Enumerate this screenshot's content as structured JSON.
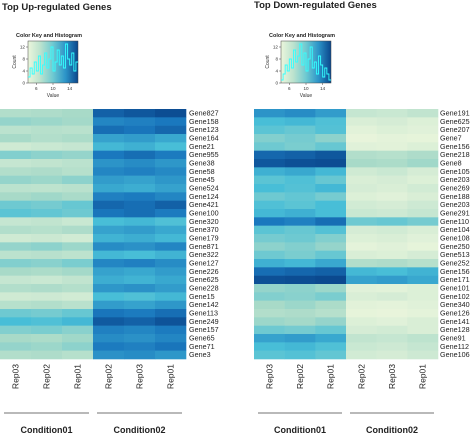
{
  "chart_data": [
    {
      "type": "heatmap",
      "title": "Top Up-regulated Genes",
      "key_title": "Color Key and Histogram",
      "key_xlabel": "Value",
      "key_ylabel": "Count",
      "key_xticks": [
        "6",
        "10",
        "14"
      ],
      "key_yticks": [
        "0",
        "4",
        "8",
        "12"
      ],
      "key_xlim": [
        4,
        16
      ],
      "key_ylim": [
        0,
        14
      ],
      "key_hist": [
        2,
        5,
        3,
        7,
        4,
        9,
        3,
        6,
        10,
        5,
        8,
        12,
        4,
        7,
        11,
        6,
        9,
        5,
        13,
        8,
        6,
        10,
        4,
        7
      ],
      "rows": [
        "Gene827",
        "Gene158",
        "Gene123",
        "Gene164",
        "Gene21",
        "Gene955",
        "Gene38",
        "Gene58",
        "Gene45",
        "Gene524",
        "Gene124",
        "Gene421",
        "Gene100",
        "Gene320",
        "Gene370",
        "Gene179",
        "Gene871",
        "Gene322",
        "Gene127",
        "Gene226",
        "Gene625",
        "Gene228",
        "Gene15",
        "Gene142",
        "Gene113",
        "Gene249",
        "Gene157",
        "Gene65",
        "Gene71",
        "Gene3"
      ],
      "columns": [
        "Rep03",
        "Rep02",
        "Rep01",
        "Rep02",
        "Rep03",
        "Rep01"
      ],
      "groups": [
        {
          "label": "Condition01",
          "span": 3
        },
        {
          "label": "Condition02",
          "span": 3
        }
      ],
      "values": [
        [
          0.3,
          0.32,
          0.35,
          0.92,
          0.95,
          0.98
        ],
        [
          0.4,
          0.38,
          0.36,
          0.8,
          0.82,
          0.85
        ],
        [
          0.25,
          0.28,
          0.26,
          0.88,
          0.86,
          0.9
        ],
        [
          0.35,
          0.3,
          0.33,
          0.7,
          0.72,
          0.68
        ],
        [
          0.15,
          0.18,
          0.2,
          0.62,
          0.65,
          0.6
        ],
        [
          0.45,
          0.42,
          0.4,
          0.85,
          0.88,
          0.84
        ],
        [
          0.2,
          0.22,
          0.25,
          0.75,
          0.78,
          0.74
        ],
        [
          0.3,
          0.32,
          0.28,
          0.8,
          0.82,
          0.79
        ],
        [
          0.4,
          0.38,
          0.42,
          0.72,
          0.7,
          0.74
        ],
        [
          0.25,
          0.24,
          0.26,
          0.68,
          0.66,
          0.7
        ],
        [
          0.35,
          0.37,
          0.34,
          0.82,
          0.84,
          0.8
        ],
        [
          0.5,
          0.48,
          0.52,
          0.9,
          0.88,
          0.92
        ],
        [
          0.55,
          0.53,
          0.5,
          0.86,
          0.88,
          0.84
        ],
        [
          0.2,
          0.22,
          0.18,
          0.6,
          0.62,
          0.58
        ],
        [
          0.3,
          0.28,
          0.32,
          0.7,
          0.72,
          0.68
        ],
        [
          0.15,
          0.17,
          0.14,
          0.64,
          0.66,
          0.62
        ],
        [
          0.4,
          0.42,
          0.38,
          0.78,
          0.76,
          0.8
        ],
        [
          0.25,
          0.27,
          0.24,
          0.62,
          0.6,
          0.64
        ],
        [
          0.45,
          0.43,
          0.47,
          0.8,
          0.82,
          0.78
        ],
        [
          0.35,
          0.33,
          0.36,
          0.7,
          0.68,
          0.72
        ],
        [
          0.2,
          0.18,
          0.22,
          0.66,
          0.64,
          0.68
        ],
        [
          0.3,
          0.32,
          0.29,
          0.74,
          0.76,
          0.72
        ],
        [
          0.15,
          0.16,
          0.14,
          0.6,
          0.58,
          0.62
        ],
        [
          0.28,
          0.3,
          0.26,
          0.72,
          0.7,
          0.74
        ],
        [
          0.5,
          0.48,
          0.52,
          0.86,
          0.84,
          0.88
        ],
        [
          0.6,
          0.58,
          0.62,
          0.94,
          0.92,
          0.96
        ],
        [
          0.45,
          0.47,
          0.43,
          0.82,
          0.8,
          0.84
        ],
        [
          0.35,
          0.33,
          0.37,
          0.78,
          0.76,
          0.8
        ],
        [
          0.4,
          0.38,
          0.42,
          0.84,
          0.82,
          0.86
        ],
        [
          0.3,
          0.32,
          0.28,
          0.76,
          0.78,
          0.74
        ]
      ]
    },
    {
      "type": "heatmap",
      "title": "Top Down-regulated Genes",
      "key_title": "Color Key and Histogram",
      "key_xlabel": "Value",
      "key_ylabel": "Count",
      "key_xticks": [
        "6",
        "10",
        "14"
      ],
      "key_yticks": [
        "0",
        "4",
        "8",
        "12"
      ],
      "key_xlim": [
        4,
        16
      ],
      "key_ylim": [
        0,
        14
      ],
      "key_hist": [
        1,
        3,
        6,
        4,
        8,
        5,
        11,
        7,
        9,
        13,
        6,
        10,
        4,
        8,
        12,
        5,
        7,
        3,
        9,
        6,
        2,
        5,
        3,
        1
      ],
      "rows": [
        "Gene191",
        "Gene625",
        "Gene207",
        "Gene7",
        "Gene156",
        "Gene218",
        "Gene8",
        "Gene105",
        "Gene203",
        "Gene269",
        "Gene188",
        "Gene203",
        "Gene291",
        "Gene110",
        "Gene104",
        "Gene108",
        "Gene250",
        "Gene513",
        "Gene252",
        "Gene156",
        "Gene171",
        "Gene101",
        "Gene102",
        "Gene340",
        "Gene126",
        "Gene141",
        "Gene128",
        "Gene91",
        "Gene112",
        "Gene106"
      ],
      "columns": [
        "Rep03",
        "Rep02",
        "Rep01",
        "Rep02",
        "Rep03",
        "Rep01"
      ],
      "groups": [
        {
          "label": "Condition01",
          "span": 3
        },
        {
          "label": "Condition02",
          "span": 3
        }
      ],
      "values": [
        [
          0.75,
          0.78,
          0.72,
          0.2,
          0.18,
          0.22
        ],
        [
          0.6,
          0.62,
          0.58,
          0.1,
          0.12,
          0.08
        ],
        [
          0.55,
          0.52,
          0.57,
          0.05,
          0.08,
          0.06
        ],
        [
          0.45,
          0.48,
          0.42,
          0.02,
          0.04,
          0.03
        ],
        [
          0.5,
          0.47,
          0.52,
          0.06,
          0.05,
          0.08
        ],
        [
          0.9,
          0.92,
          0.95,
          0.3,
          0.28,
          0.32
        ],
        [
          0.95,
          0.97,
          0.98,
          0.35,
          0.33,
          0.37
        ],
        [
          0.65,
          0.68,
          0.62,
          0.15,
          0.18,
          0.12
        ],
        [
          0.55,
          0.58,
          0.52,
          0.1,
          0.12,
          0.08
        ],
        [
          0.6,
          0.57,
          0.62,
          0.12,
          0.1,
          0.14
        ],
        [
          0.5,
          0.53,
          0.48,
          0.08,
          0.06,
          0.1
        ],
        [
          0.58,
          0.55,
          0.6,
          0.14,
          0.12,
          0.16
        ],
        [
          0.62,
          0.65,
          0.6,
          0.18,
          0.16,
          0.2
        ],
        [
          0.85,
          0.82,
          0.88,
          0.5,
          0.52,
          0.48
        ],
        [
          0.55,
          0.52,
          0.57,
          0.12,
          0.14,
          0.1
        ],
        [
          0.48,
          0.5,
          0.45,
          0.08,
          0.1,
          0.06
        ],
        [
          0.42,
          0.45,
          0.4,
          0.04,
          0.06,
          0.03
        ],
        [
          0.5,
          0.47,
          0.52,
          0.1,
          0.08,
          0.12
        ],
        [
          0.65,
          0.62,
          0.68,
          0.3,
          0.32,
          0.28
        ],
        [
          0.88,
          0.9,
          0.92,
          0.62,
          0.6,
          0.64
        ],
        [
          0.97,
          0.98,
          0.99,
          0.7,
          0.72,
          0.68
        ],
        [
          0.4,
          0.42,
          0.38,
          0.06,
          0.05,
          0.08
        ],
        [
          0.45,
          0.43,
          0.47,
          0.1,
          0.12,
          0.08
        ],
        [
          0.35,
          0.38,
          0.33,
          0.05,
          0.04,
          0.06
        ],
        [
          0.3,
          0.32,
          0.28,
          0.03,
          0.02,
          0.04
        ],
        [
          0.38,
          0.36,
          0.4,
          0.08,
          0.06,
          0.1
        ],
        [
          0.5,
          0.48,
          0.52,
          0.12,
          0.14,
          0.1
        ],
        [
          0.7,
          0.72,
          0.68,
          0.22,
          0.2,
          0.24
        ],
        [
          0.6,
          0.62,
          0.58,
          0.18,
          0.16,
          0.2
        ],
        [
          0.55,
          0.57,
          0.53,
          0.14,
          0.12,
          0.16
        ]
      ]
    }
  ]
}
